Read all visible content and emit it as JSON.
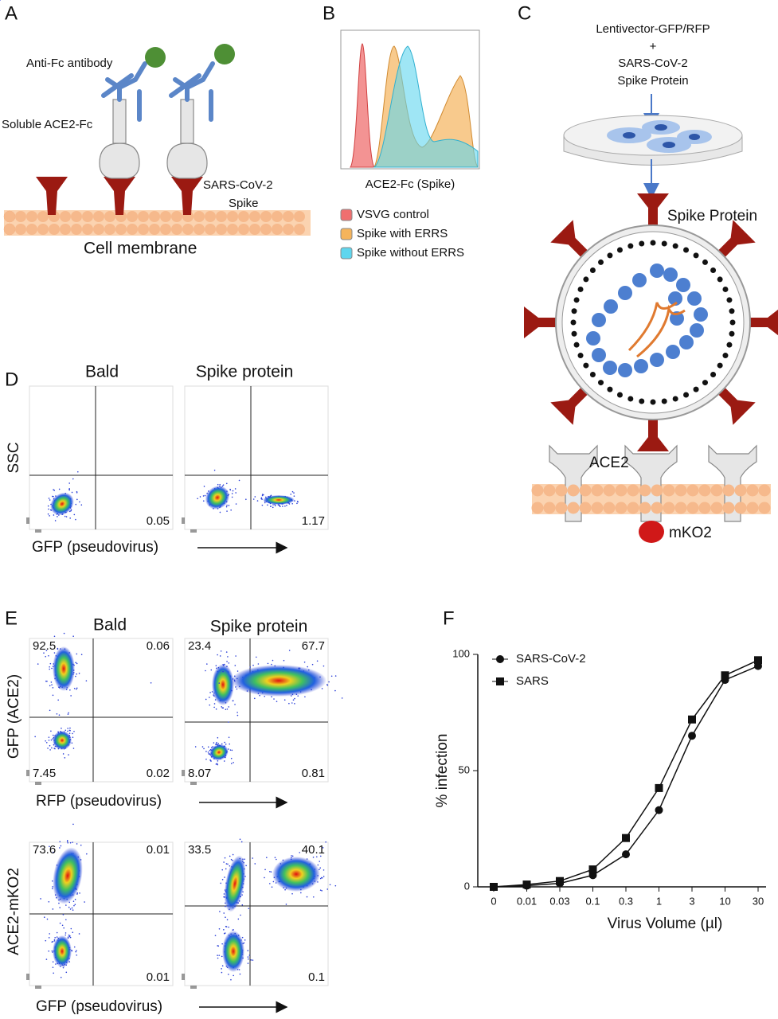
{
  "panel_labels": [
    "A",
    "B",
    "C",
    "D",
    "E",
    "F"
  ],
  "A": {
    "antibody": "Anti-Fc antibody",
    "soluble": "Soluble ACE2-Fc",
    "spike": [
      "SARS-CoV-2",
      "Spike"
    ],
    "membrane": "Cell membrane"
  },
  "B": {
    "xlabel": "ACE2-Fc (Spike)",
    "legend": [
      {
        "name": "VSVG control",
        "color": "#ef6f6f"
      },
      {
        "name": "Spike with ERRS",
        "color": "#f5b45c"
      },
      {
        "name": "Spike without ERRS",
        "color": "#5fd6ee"
      }
    ]
  },
  "C": {
    "title": [
      "Lentivector-GFP/RFP",
      "+",
      "SARS-CoV-2",
      "Spike Protein"
    ],
    "spike": "Spike Protein",
    "ace2": "ACE2",
    "mko2": "mKO2"
  },
  "D": {
    "titles": [
      "Bald",
      "Spike protein"
    ],
    "ylabel": "SSC",
    "xlabel": "GFP (pseudovirus)",
    "plots": [
      {
        "lr": 0.05
      },
      {
        "lr": 1.17
      }
    ]
  },
  "E": {
    "titles": [
      "Bald",
      "Spike protein"
    ],
    "top": {
      "ylabel": "GFP (ACE2)",
      "xlabel": "RFP (pseudovirus)",
      "plots": [
        {
          "ul": 92.5,
          "ur": 0.06,
          "ll": 7.45,
          "lr": 0.02
        },
        {
          "ul": 23.4,
          "ur": 67.7,
          "ll": 8.07,
          "lr": 0.81
        }
      ]
    },
    "bottom": {
      "ylabel": "ACE2-mKO2",
      "xlabel": "GFP (pseudovirus)",
      "plots": [
        {
          "ul": 73.6,
          "ur": 0.01,
          "lr": 0.01
        },
        {
          "ul": 33.5,
          "ur": 40.1,
          "lr": 0.1
        }
      ]
    }
  },
  "F": {
    "type": "line",
    "ylabel": "% infection",
    "xlabel": "Virus Volume (µl)",
    "categories": [
      "0",
      "0.01",
      "0.03",
      "0.1",
      "0.3",
      "1",
      "3",
      "10",
      "30"
    ],
    "ylim": [
      0,
      100
    ],
    "yticks": [
      0,
      50,
      100
    ],
    "series": [
      {
        "name": "SARS-CoV-2",
        "marker": "circle",
        "color": "#111111",
        "values": [
          0,
          0.5,
          1.5,
          5,
          14,
          33,
          65,
          89,
          95
        ]
      },
      {
        "name": "SARS",
        "marker": "square",
        "color": "#111111",
        "values": [
          0,
          1,
          2.5,
          7.5,
          21,
          42.5,
          72,
          91,
          97.5
        ]
      }
    ]
  }
}
